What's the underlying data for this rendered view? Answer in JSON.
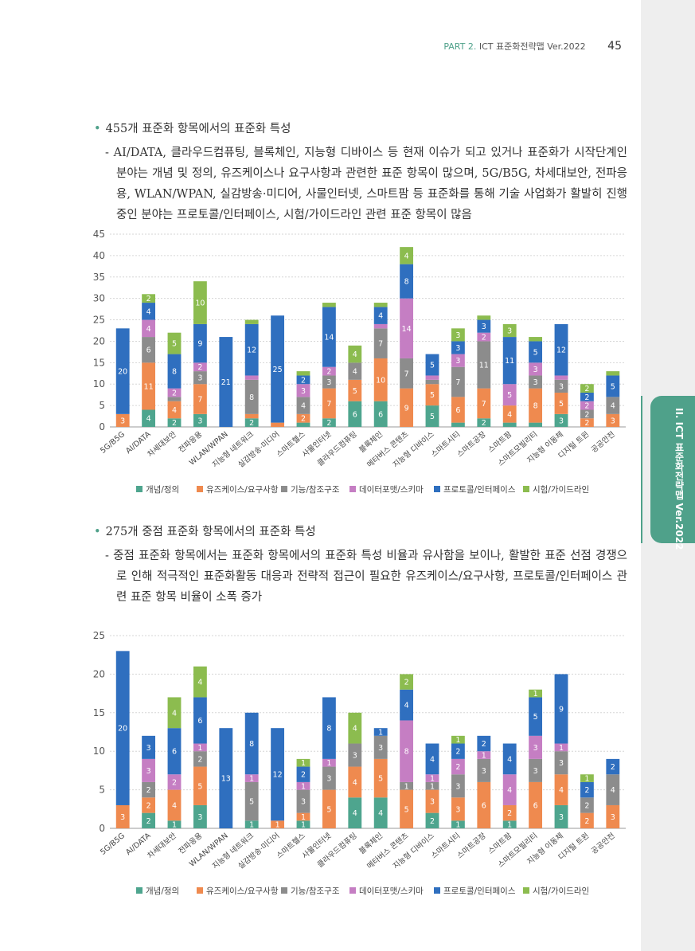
{
  "header": {
    "part": "PART 2.",
    "title": "ICT 표준화전략맵 Ver.2022",
    "page_number": "45"
  },
  "side_tab": {
    "label": "II. ICT 표준화전략맵 Ver.2022"
  },
  "section1": {
    "heading": "455개 표준화 항목에서의 표준화 특성",
    "description": "- AI/DATA, 클라우드컴퓨팅, 블록체인, 지능형 디바이스 등 현재 이슈가 되고 있거나 표준화가 시작단계인 분야는 개념 및 정의, 유즈케이스나 요구사항과 관련한 표준 항목이 많으며, 5G/B5G, 차세대보안, 전파응용, WLAN/WPAN, 실감방송·미디어, 사물인터넷, 스마트팜 등 표준화를 통해 기술 사업화가 활발히 진행 중인 분야는 프로토콜/인터페이스, 시험/가이드라인 관련 표준 항목이 많음"
  },
  "section2": {
    "heading": "275개 중점 표준화 항목에서의 표준화 특성",
    "description": "- 중점 표준화 항목에서는 표준화 항목에서의 표준화 특성 비율과 유사함을 보이나, 활발한 표준 선점 경쟁으로 인해 적극적인 표준화활동 대응과 전략적 접근이 필요한 유즈케이스/요구사항, 프로토콜/인터페이스 관련 표준 항목 비율이 소폭 증가"
  },
  "chart_data": [
    {
      "type": "bar",
      "stacked": true,
      "categories": [
        "5G/B5G",
        "AI/DATA",
        "차세대보안",
        "전파응용",
        "WLAN/WPAN",
        "지능형 네트워크",
        "실감방송·미디어",
        "스마트헬스",
        "사물인터넷",
        "클라우드컴퓨팅",
        "블록체인",
        "메타버스 콘텐츠",
        "지능형 디바이스",
        "스마트시티",
        "스마트공장",
        "스마트팜",
        "스마트모빌리티",
        "지능형 이동체",
        "디지털 트윈",
        "공공안전"
      ],
      "series": [
        {
          "name": "개념/정의",
          "color": "#4ea58e",
          "values": [
            0,
            4,
            2,
            3,
            0,
            2,
            0,
            1,
            2,
            6,
            6,
            0,
            5,
            1,
            2,
            1,
            1,
            3,
            0,
            0
          ]
        },
        {
          "name": "유즈케이스/요구사항",
          "color": "#ef8a4f",
          "values": [
            3,
            11,
            4,
            7,
            0,
            1,
            1,
            2,
            7,
            5,
            10,
            9,
            5,
            6,
            7,
            4,
            8,
            5,
            2,
            3
          ]
        },
        {
          "name": "기능/참조구조",
          "color": "#8c8c8c",
          "values": [
            0,
            6,
            1,
            3,
            0,
            8,
            0,
            4,
            3,
            4,
            7,
            7,
            1,
            7,
            11,
            0,
            3,
            3,
            2,
            4
          ]
        },
        {
          "name": "데이터포맷/스키마",
          "color": "#c57ec3",
          "values": [
            0,
            4,
            2,
            2,
            0,
            1,
            0,
            3,
            2,
            0,
            1,
            14,
            1,
            3,
            2,
            5,
            3,
            1,
            2,
            0
          ]
        },
        {
          "name": "프로토콜/인터페이스",
          "color": "#2f6fbf",
          "values": [
            20,
            4,
            8,
            9,
            21,
            12,
            25,
            2,
            14,
            0,
            4,
            8,
            5,
            3,
            3,
            11,
            5,
            12,
            2,
            5
          ]
        },
        {
          "name": "시험/가이드라인",
          "color": "#8cbc4f",
          "values": [
            0,
            2,
            5,
            10,
            0,
            1,
            0,
            1,
            1,
            4,
            1,
            4,
            0,
            3,
            1,
            3,
            1,
            0,
            2,
            1
          ]
        }
      ],
      "ylim": [
        0,
        45
      ],
      "yticks": [
        0,
        5,
        10,
        15,
        20,
        25,
        30,
        35,
        40,
        45
      ],
      "grid": true,
      "legend_position": "bottom"
    },
    {
      "type": "bar",
      "stacked": true,
      "categories": [
        "5G/B5G",
        "AI/DATA",
        "차세대보안",
        "전파응용",
        "WLAN/WPAN",
        "지능형 네트워크",
        "실감방송·미디어",
        "스마트헬스",
        "사물인터넷",
        "클라우드컴퓨팅",
        "블록체인",
        "메타버스 콘텐츠",
        "지능형 디바이스",
        "스마트시티",
        "스마트공장",
        "스마트팜",
        "스마트모빌리티",
        "지능형 이동체",
        "디지털 트윈",
        "공공안전"
      ],
      "series": [
        {
          "name": "개념/정의",
          "color": "#4ea58e",
          "values": [
            0,
            2,
            1,
            3,
            0,
            1,
            0,
            1,
            0,
            4,
            4,
            0,
            2,
            1,
            0,
            1,
            0,
            3,
            0,
            0
          ]
        },
        {
          "name": "유즈케이스/요구사항",
          "color": "#ef8a4f",
          "values": [
            3,
            2,
            4,
            5,
            0,
            0,
            1,
            1,
            5,
            4,
            5,
            5,
            3,
            3,
            6,
            2,
            6,
            4,
            2,
            3
          ]
        },
        {
          "name": "기능/참조구조",
          "color": "#8c8c8c",
          "values": [
            0,
            2,
            0,
            2,
            0,
            5,
            0,
            3,
            3,
            3,
            3,
            1,
            1,
            3,
            3,
            0,
            3,
            3,
            2,
            4
          ]
        },
        {
          "name": "데이터포맷/스키마",
          "color": "#c57ec3",
          "values": [
            0,
            3,
            2,
            1,
            0,
            1,
            0,
            1,
            1,
            0,
            0,
            8,
            1,
            2,
            1,
            4,
            3,
            1,
            0,
            0
          ]
        },
        {
          "name": "프로토콜/인터페이스",
          "color": "#2f6fbf",
          "values": [
            20,
            3,
            6,
            6,
            13,
            8,
            12,
            2,
            8,
            0,
            1,
            4,
            4,
            2,
            2,
            4,
            5,
            9,
            2,
            2
          ]
        },
        {
          "name": "시험/가이드라인",
          "color": "#8cbc4f",
          "values": [
            0,
            0,
            4,
            4,
            0,
            0,
            0,
            1,
            0,
            4,
            0,
            2,
            0,
            1,
            0,
            0,
            1,
            0,
            1,
            0
          ]
        }
      ],
      "ylim": [
        0,
        25
      ],
      "yticks": [
        0,
        5,
        10,
        15,
        20,
        25
      ],
      "grid": true,
      "legend_position": "bottom"
    }
  ]
}
